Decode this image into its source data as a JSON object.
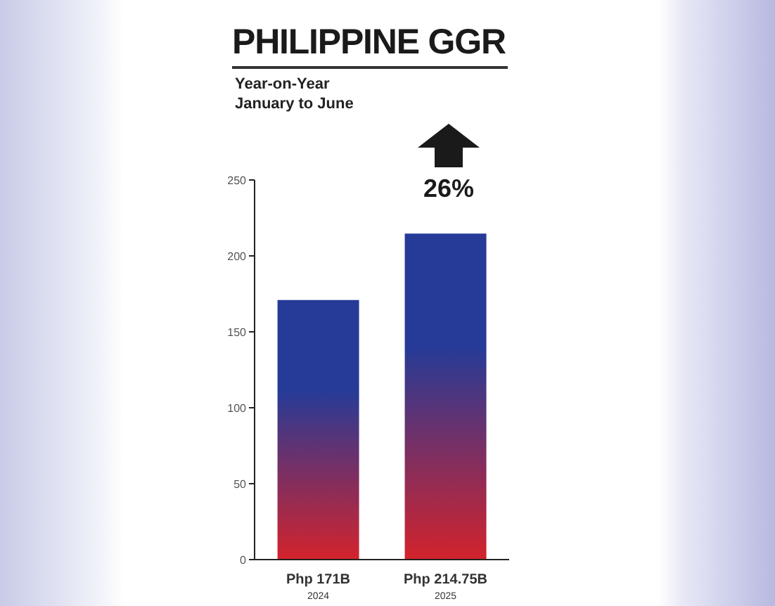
{
  "chart_data": {
    "type": "bar",
    "title": "PHILIPPINE GGR",
    "subtitle": "Year-on-Year\nJanuary to June",
    "categories": [
      "Php 171B\n2024",
      "Php 214.75B\n2025"
    ],
    "values": [
      171,
      214.75
    ],
    "color": "#263b97",
    "ylim": [
      0,
      250
    ],
    "yticks": [
      0,
      50,
      100,
      150,
      200,
      250
    ],
    "annotations": [
      "26%"
    ]
  }
}
